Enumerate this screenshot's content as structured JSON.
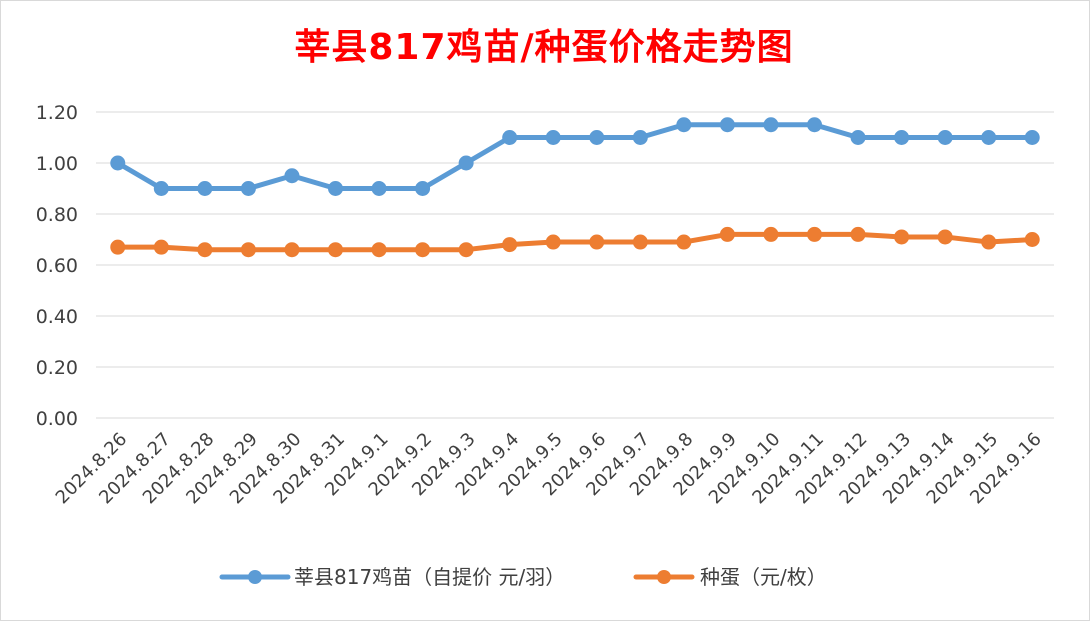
{
  "chart_data": {
    "type": "line",
    "title": "莘县817鸡苗/种蛋价格走势图",
    "xlabel": "",
    "ylabel": "",
    "ylim": [
      0,
      1.2
    ],
    "y_ticks": [
      "0.00",
      "0.20",
      "0.40",
      "0.60",
      "0.80",
      "1.00",
      "1.20"
    ],
    "grid": true,
    "legend_position": "bottom",
    "categories": [
      "2024.8.26",
      "2024.8.27",
      "2024.8.28",
      "2024.8.29",
      "2024.8.30",
      "2024.8.31",
      "2024.9.1",
      "2024.9.2",
      "2024.9.3",
      "2024.9.4",
      "2024.9.5",
      "2024.9.6",
      "2024.9.7",
      "2024.9.8",
      "2024.9.9",
      "2024.9.10",
      "2024.9.11",
      "2024.9.12",
      "2024.9.13",
      "2024.9.14",
      "2024.9.15",
      "2024.9.16"
    ],
    "series": [
      {
        "name": "莘县817鸡苗（自提价 元/羽）",
        "color": "#5b9bd5",
        "values": [
          1.0,
          0.9,
          0.9,
          0.9,
          0.95,
          0.9,
          0.9,
          0.9,
          1.0,
          1.1,
          1.1,
          1.1,
          1.1,
          1.15,
          1.15,
          1.15,
          1.15,
          1.1,
          1.1,
          1.1,
          1.1,
          1.1
        ]
      },
      {
        "name": "种蛋（元/枚）",
        "color": "#ed7d31",
        "values": [
          0.67,
          0.67,
          0.66,
          0.66,
          0.66,
          0.66,
          0.66,
          0.66,
          0.66,
          0.68,
          0.69,
          0.69,
          0.69,
          0.69,
          0.72,
          0.72,
          0.72,
          0.72,
          0.71,
          0.71,
          0.69,
          0.7
        ]
      }
    ]
  }
}
